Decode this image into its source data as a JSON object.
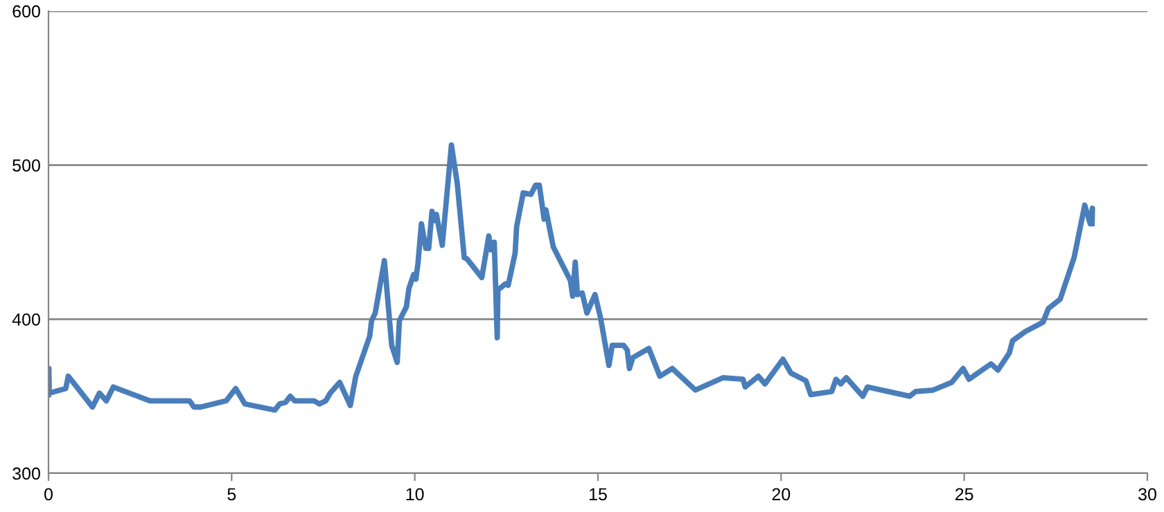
{
  "chart_data": {
    "type": "line",
    "xlim": [
      0,
      30
    ],
    "xticks": [
      0,
      5,
      10,
      15,
      20,
      25,
      30
    ],
    "ylim": [
      300,
      600
    ],
    "yticks": [
      300,
      400,
      500,
      600
    ],
    "grid": "y",
    "marker": "none",
    "line_style": "solid",
    "series": [
      {
        "color": "#4a7ebb",
        "x": [
          0,
          0.01,
          0.02,
          0.47,
          0.54,
          1.2,
          1.39,
          1.58,
          1.77,
          2.77,
          3.85,
          3.97,
          4.16,
          4.85,
          5.11,
          5.36,
          6.18,
          6.31,
          6.47,
          6.6,
          6.72,
          7.25,
          7.4,
          7.57,
          7.69,
          7.95,
          8.24,
          8.39,
          8.77,
          8.82,
          8.92,
          9.17,
          9.37,
          9.52,
          9.58,
          9.77,
          9.84,
          9.97,
          10.03,
          10.09,
          10.18,
          10.3,
          10.38,
          10.47,
          10.53,
          10.59,
          10.75,
          11.0,
          11.16,
          11.35,
          11.43,
          11.83,
          12.02,
          12.08,
          12.17,
          12.25,
          12.27,
          12.48,
          12.55,
          12.74,
          12.78,
          12.96,
          13.17,
          13.3,
          13.4,
          13.53,
          13.58,
          13.78,
          14.25,
          14.31,
          14.38,
          14.44,
          14.57,
          14.7,
          14.92,
          15.07,
          15.3,
          15.39,
          15.7,
          15.8,
          15.86,
          15.95,
          16.39,
          16.69,
          17.03,
          17.66,
          18.41,
          18.96,
          19.02,
          19.38,
          19.56,
          20.05,
          20.27,
          20.68,
          20.81,
          21.38,
          21.5,
          21.63,
          21.78,
          22.23,
          22.36,
          23.51,
          23.67,
          24.15,
          24.66,
          24.97,
          25.13,
          25.73,
          25.92,
          26.23,
          26.32,
          26.67,
          27.15,
          27.3,
          27.62,
          28.0,
          28.29,
          28.44,
          28.5,
          28.49
        ],
        "values": [
          351,
          368,
          352,
          355,
          363,
          343,
          352,
          347,
          356,
          347,
          347,
          343,
          343,
          347,
          355,
          345,
          341,
          345,
          346,
          350,
          347,
          347,
          345,
          347,
          352,
          359,
          344,
          363,
          389,
          399,
          404,
          438,
          383,
          372,
          399,
          408,
          420,
          429,
          426,
          437,
          462,
          446,
          446,
          470,
          464,
          468,
          448,
          513,
          488,
          440,
          439,
          427,
          454,
          445,
          450,
          388,
          419,
          423,
          422,
          443,
          460,
          482,
          481,
          487,
          487,
          465,
          471,
          447,
          425,
          415,
          437,
          416,
          417,
          404,
          416,
          401,
          370,
          383,
          383,
          380,
          368,
          375,
          381,
          363,
          368,
          354,
          362,
          361,
          356,
          363,
          358,
          374,
          365,
          360,
          351,
          353,
          361,
          358,
          362,
          350,
          356,
          350,
          353,
          354,
          359,
          368,
          361,
          371,
          367,
          378,
          386,
          392,
          398,
          407,
          413,
          440,
          474,
          462,
          472,
          462
        ]
      }
    ]
  }
}
